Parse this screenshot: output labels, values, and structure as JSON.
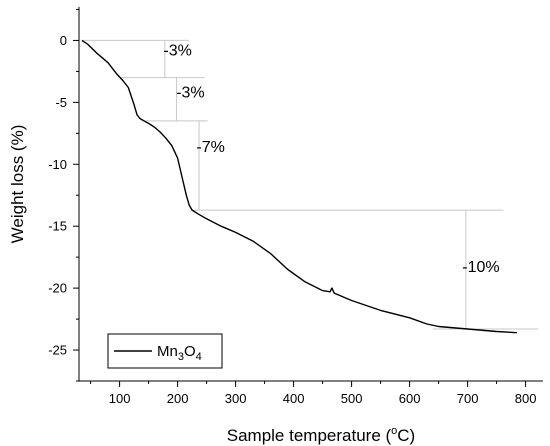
{
  "chart_data": {
    "type": "line",
    "xlabel": "Sample temperature (°C)",
    "xlabel_parts": {
      "before": "Sample temperature (",
      "sup": "o",
      "after": "C)"
    },
    "ylabel": "Weight loss (%)",
    "xlim": [
      30,
      830
    ],
    "ylim": [
      -27.5,
      2.7
    ],
    "x_ticks": [
      100,
      200,
      300,
      400,
      500,
      600,
      700,
      800
    ],
    "y_ticks": [
      0,
      -5,
      -10,
      -15,
      -20,
      -25
    ],
    "grid": false,
    "legend_position": "bottom-left",
    "series": [
      {
        "name": "Mn3O4",
        "name_parts": [
          {
            "text": "Mn",
            "sub": false
          },
          {
            "text": "3",
            "sub": true
          },
          {
            "text": "O",
            "sub": false
          },
          {
            "text": "4",
            "sub": true
          }
        ],
        "color": "#000000",
        "x": [
          35,
          45,
          60,
          80,
          95,
          105,
          115,
          125,
          130,
          135,
          142,
          150,
          160,
          170,
          180,
          190,
          200,
          205,
          210,
          215,
          220,
          225,
          235,
          250,
          275,
          300,
          330,
          360,
          390,
          420,
          450,
          463,
          466,
          470,
          500,
          550,
          600,
          630,
          650,
          700,
          750,
          785
        ],
        "y": [
          0,
          -0.3,
          -1.0,
          -1.8,
          -2.7,
          -3.2,
          -3.8,
          -5.2,
          -6.0,
          -6.3,
          -6.5,
          -6.7,
          -7.0,
          -7.4,
          -7.9,
          -8.5,
          -9.5,
          -10.5,
          -11.5,
          -12.5,
          -13.3,
          -13.7,
          -14.0,
          -14.4,
          -15.0,
          -15.5,
          -16.2,
          -17.2,
          -18.5,
          -19.5,
          -20.2,
          -20.3,
          -20.0,
          -20.4,
          -21.0,
          -21.8,
          -22.4,
          -22.9,
          -23.1,
          -23.3,
          -23.5,
          -23.6
        ]
      }
    ],
    "annotations": [
      {
        "text": "-3%",
        "x": 200,
        "y": -1.2
      },
      {
        "text": "-3%",
        "x": 222,
        "y": -4.6
      },
      {
        "text": "-7%",
        "x": 257,
        "y": -9.0
      },
      {
        "text": "-10%",
        "x": 723,
        "y": -18.7
      }
    ],
    "reference_lines": {
      "horizontal": [
        {
          "y": 0,
          "x0": 35,
          "x1": 220
        },
        {
          "y": -3,
          "x0": 100,
          "x1": 247
        },
        {
          "y": -6.5,
          "x0": 145,
          "x1": 252
        },
        {
          "y": -13.7,
          "x0": 225,
          "x1": 762
        },
        {
          "y": -23.3,
          "x0": 640,
          "x1": 822
        }
      ],
      "vertical": [
        {
          "x": 178,
          "y0": 0,
          "y1": -3
        },
        {
          "x": 198,
          "y0": -3,
          "y1": -6.5
        },
        {
          "x": 237,
          "y0": -6.5,
          "y1": -13.7
        },
        {
          "x": 697,
          "y0": -13.7,
          "y1": -23.3
        }
      ]
    },
    "colors": {
      "curve": "#000000",
      "reference": "#c8c8c8",
      "axis": "#000000"
    }
  }
}
